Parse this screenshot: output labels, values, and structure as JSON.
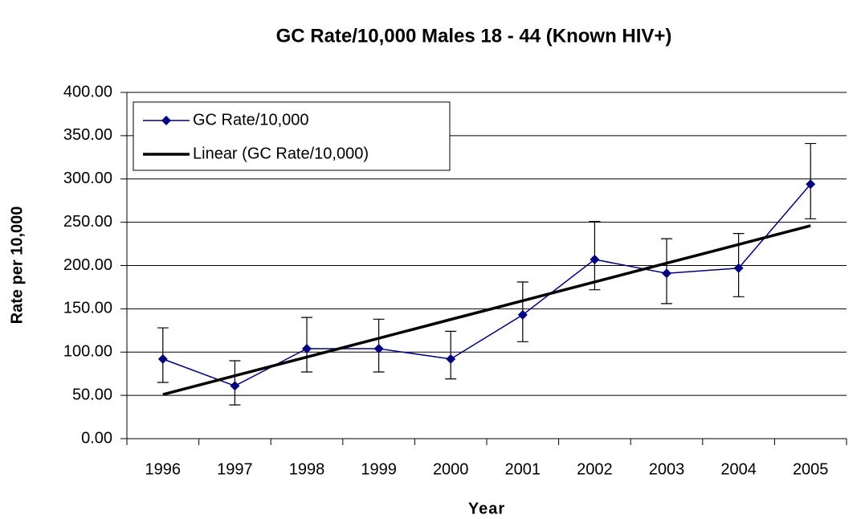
{
  "chart_data": {
    "type": "line",
    "title": "GC Rate/10,000 Males 18 - 44 (Known HIV+)",
    "x_label": "Year",
    "y_label": "Rate per 10,000",
    "categories": [
      "1996",
      "1997",
      "1998",
      "1999",
      "2000",
      "2001",
      "2002",
      "2003",
      "2004",
      "2005"
    ],
    "series": [
      {
        "name": "GC Rate/10,000",
        "color": "#000080",
        "values": [
          92,
          61,
          104,
          104,
          92,
          143,
          207,
          191,
          197,
          294
        ],
        "error_plus": [
          36,
          29,
          36,
          34,
          32,
          38,
          44,
          40,
          40,
          47
        ],
        "error_minus": [
          27,
          22,
          27,
          27,
          23,
          31,
          35,
          35,
          33,
          40
        ]
      },
      {
        "name": "Linear (GC Rate/10,000)",
        "color": "#000000",
        "values": [
          51,
          72.7,
          94.3,
          116,
          137.7,
          159.3,
          181,
          202.7,
          224.3,
          246
        ]
      }
    ],
    "ylim": [
      0,
      400
    ],
    "yticks": [
      {
        "value": 0,
        "label": "0.00"
      },
      {
        "value": 50,
        "label": "50.00"
      },
      {
        "value": 100,
        "label": "100.00"
      },
      {
        "value": 150,
        "label": "150.00"
      },
      {
        "value": 200,
        "label": "200.00"
      },
      {
        "value": 250,
        "label": "250.00"
      },
      {
        "value": 300,
        "label": "300.00"
      },
      {
        "value": 350,
        "label": "350.00"
      },
      {
        "value": 400,
        "label": "400.00"
      }
    ],
    "grid": true,
    "legend": "upper left"
  }
}
